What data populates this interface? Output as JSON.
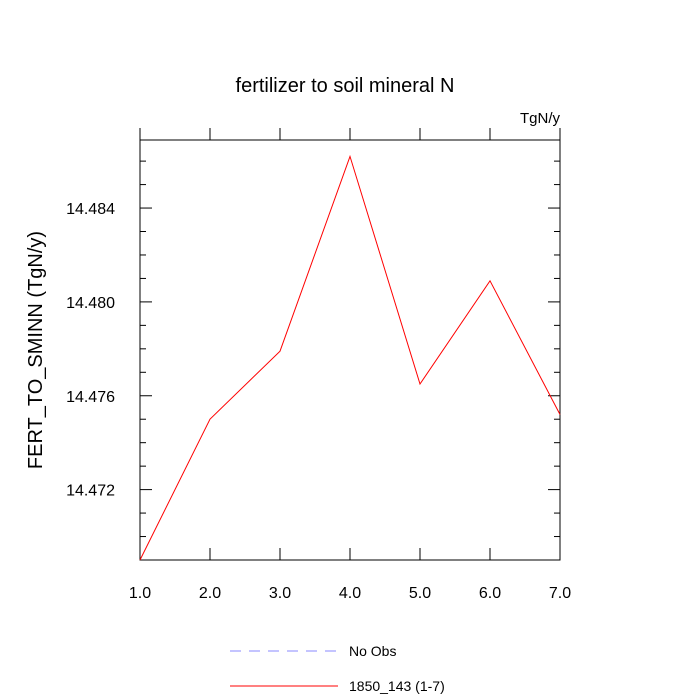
{
  "chart_data": {
    "type": "line",
    "title": "fertilizer to soil mineral N",
    "units": "TgN/y",
    "xlabel": "",
    "ylabel": "FERT_TO_SMINN  (TgN/y)",
    "xlim": [
      1.0,
      7.0
    ],
    "ylim": [
      14.469,
      14.4869
    ],
    "x_ticks": [
      1.0,
      2.0,
      3.0,
      4.0,
      5.0,
      6.0,
      7.0
    ],
    "x_tick_labels": [
      "1.0",
      "2.0",
      "3.0",
      "4.0",
      "5.0",
      "6.0",
      "7.0"
    ],
    "y_ticks": [
      14.472,
      14.476,
      14.48,
      14.484
    ],
    "y_tick_labels": [
      "14.472",
      "14.476",
      "14.480",
      "14.484"
    ],
    "grid": false,
    "legend_position": "bottom",
    "series": [
      {
        "name": "1850_143 (1-7)",
        "color": "#ff0000",
        "dash": "solid",
        "x": [
          1.0,
          2.0,
          3.0,
          4.0,
          5.0,
          6.0,
          7.0
        ],
        "y": [
          14.469,
          14.475,
          14.4779,
          14.4862,
          14.4765,
          14.4809,
          14.4752
        ]
      }
    ],
    "legend": [
      {
        "label": "No Obs",
        "color": "#8888ff",
        "dash": "dashed"
      },
      {
        "label": "1850_143 (1-7)",
        "color": "#ff0000",
        "dash": "solid"
      }
    ]
  }
}
